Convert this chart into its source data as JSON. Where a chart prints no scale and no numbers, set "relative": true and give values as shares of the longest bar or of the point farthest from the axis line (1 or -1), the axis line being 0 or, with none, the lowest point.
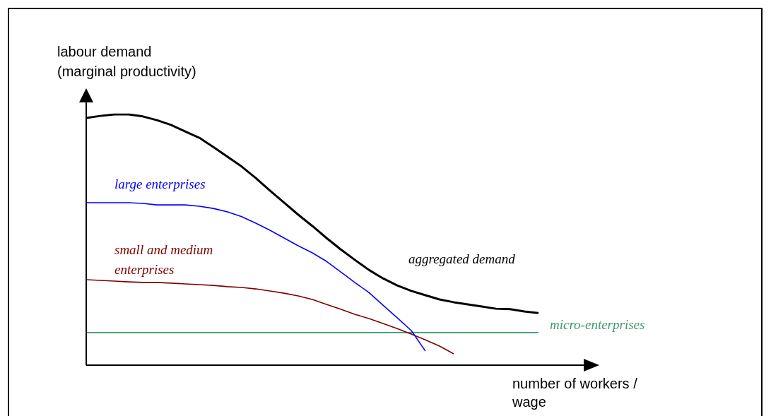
{
  "chart_data": {
    "type": "line",
    "relative": true,
    "xlabel": "number of workers / wage",
    "ylabel": "labour demand (marginal productivity)",
    "legend": false,
    "marker": "none",
    "line_style": "solid",
    "tick_labels": false,
    "categories": [
      null,
      null,
      null,
      null,
      null,
      null,
      null,
      null,
      null,
      null,
      null,
      null,
      null,
      null,
      null,
      null,
      null,
      null,
      null,
      null,
      null,
      null,
      null,
      null,
      null,
      null,
      null,
      null,
      null,
      null,
      null,
      null,
      null,
      null,
      null,
      null,
      null
    ],
    "series": [
      {
        "name": "aggregated demand",
        "color": "#000000",
        "values": [
          0.986,
          0.994,
          1.0,
          1.0,
          0.992,
          0.977,
          0.958,
          0.932,
          0.907,
          0.87,
          0.831,
          0.792,
          0.746,
          0.696,
          0.648,
          0.6,
          0.555,
          0.507,
          0.462,
          0.42,
          0.38,
          0.346,
          0.318,
          0.296,
          0.279,
          0.262,
          0.251,
          0.242,
          0.234,
          0.225,
          0.223,
          0.214,
          0.208,
          null,
          null,
          null,
          null
        ]
      },
      {
        "name": "large enterprises",
        "color": "#0000ff",
        "values": [
          0.648,
          0.648,
          0.648,
          0.648,
          0.645,
          0.639,
          0.639,
          0.639,
          0.634,
          0.625,
          0.611,
          0.592,
          0.566,
          0.538,
          0.507,
          0.476,
          0.448,
          0.414,
          0.372,
          0.33,
          0.29,
          0.239,
          0.189,
          0.138,
          0.056,
          null,
          null,
          null,
          null,
          null,
          null,
          null,
          null,
          null,
          null,
          null,
          null
        ]
      },
      {
        "name": "small and medium enterprises",
        "color": "#800000",
        "values": [
          0.341,
          0.338,
          0.335,
          0.332,
          0.33,
          0.33,
          0.327,
          0.324,
          0.321,
          0.318,
          0.313,
          0.31,
          0.304,
          0.296,
          0.287,
          0.276,
          0.262,
          0.242,
          0.223,
          0.203,
          0.186,
          0.166,
          0.146,
          0.124,
          0.101,
          0.076,
          0.045,
          null,
          null,
          null,
          null,
          null,
          null,
          null,
          null,
          null,
          null
        ]
      },
      {
        "name": "micro-enterprises",
        "color": "#3c9a6e",
        "values": [
          0.13,
          0.13,
          0.13,
          0.13,
          0.13,
          0.13,
          0.13,
          0.13,
          0.13,
          0.13,
          0.13,
          0.13,
          0.13,
          0.13,
          0.13,
          0.13,
          0.13,
          0.13,
          0.13,
          0.13,
          0.13,
          0.13,
          0.13,
          0.13,
          0.13,
          0.13,
          0.13,
          0.13,
          0.13,
          0.13,
          0.13,
          0.13,
          0.13,
          null,
          null,
          null,
          null
        ]
      }
    ]
  }
}
